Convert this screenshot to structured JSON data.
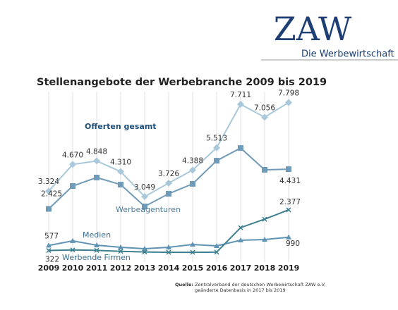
{
  "header": {
    "logo": "ZAW",
    "subtitle": "Die Werbewirtschaft"
  },
  "chart_data": {
    "type": "line",
    "title": "Stellenangebote der Werbebranche 2009 bis 2019",
    "categories": [
      "2009",
      "2010",
      "2011",
      "2012",
      "2013",
      "2014",
      "2015",
      "2016",
      "2017",
      "2018",
      "2019"
    ],
    "grid": true,
    "series": [
      {
        "name": "Offerten gesamt",
        "color": "#a9c8da",
        "marker": "diamond",
        "values": [
          3324,
          4670,
          4848,
          4310,
          3049,
          3726,
          4388,
          5513,
          7711,
          7056,
          7798
        ],
        "value_labels": [
          "3.324",
          "4.670",
          "4.848",
          "4.310",
          "3.049",
          "3.726",
          "4.388",
          "5.513",
          "7.711",
          "7.056",
          "7.798"
        ]
      },
      {
        "name": "Werbeagenturen",
        "color": "#6f9ab8",
        "marker": "square",
        "values": [
          2425,
          3580,
          4010,
          3650,
          2550,
          3190,
          3690,
          4860,
          5500,
          4400,
          4431
        ],
        "value_labels": [
          "2.425",
          null,
          null,
          null,
          null,
          null,
          null,
          null,
          null,
          null,
          "4.431"
        ]
      },
      {
        "name": "Medien",
        "color": "#5f93b3",
        "marker": "triangle",
        "values": [
          577,
          808,
          590,
          484,
          413,
          484,
          627,
          555,
          840,
          876,
          990
        ],
        "value_labels": [
          "577",
          null,
          null,
          null,
          null,
          null,
          null,
          null,
          null,
          null,
          "990"
        ]
      },
      {
        "name": "Werbende Firmen",
        "color": "#3e7f8e",
        "marker": "x",
        "values": [
          322,
          350,
          330,
          280,
          250,
          230,
          230,
          240,
          1477,
          1904,
          2377
        ],
        "value_labels": [
          "322",
          null,
          null,
          null,
          null,
          null,
          null,
          null,
          null,
          null,
          "2.377"
        ]
      }
    ],
    "source_label": "Quelle:",
    "source": "Zentralverband der deutschen Werbewirtschaft ZAW e.V.",
    "note": "geänderte Datenbasis in 2017 bis 2019"
  }
}
